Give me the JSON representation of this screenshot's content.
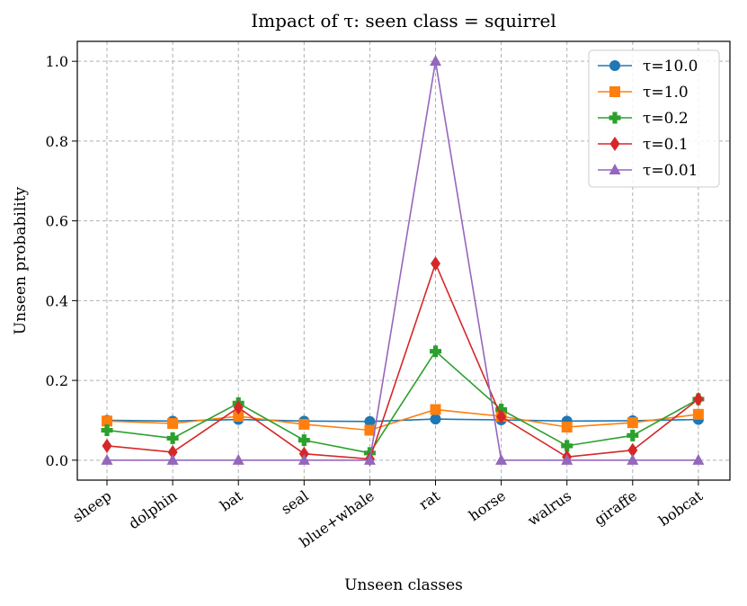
{
  "chart_data": {
    "type": "line",
    "title": "Impact of τ: seen class = squirrel",
    "xlabel": "Unseen classes",
    "ylabel": "Unseen probability",
    "ylim": [
      -0.05,
      1.05
    ],
    "yticks": [
      0.0,
      0.2,
      0.4,
      0.6,
      0.8,
      1.0
    ],
    "ytick_labels": [
      "0.0",
      "0.2",
      "0.4",
      "0.6",
      "0.8",
      "1.0"
    ],
    "grid": true,
    "legend_position": "top-right",
    "categories": [
      "sheep",
      "dolphin",
      "bat",
      "seal",
      "blue+whale",
      "rat",
      "horse",
      "walrus",
      "giraffe",
      "bobcat"
    ],
    "series": [
      {
        "name": "τ=10.0",
        "color": "#1f77b4",
        "marker": "circle",
        "values": [
          0.1,
          0.098,
          0.102,
          0.098,
          0.097,
          0.103,
          0.101,
          0.098,
          0.099,
          0.102
        ]
      },
      {
        "name": "τ=1.0",
        "color": "#ff7f0e",
        "marker": "square",
        "values": [
          0.098,
          0.092,
          0.11,
          0.09,
          0.075,
          0.127,
          0.11,
          0.083,
          0.094,
          0.115
        ]
      },
      {
        "name": "τ=0.2",
        "color": "#2ca02c",
        "marker": "plus",
        "values": [
          0.075,
          0.055,
          0.143,
          0.05,
          0.018,
          0.273,
          0.127,
          0.036,
          0.062,
          0.153
        ]
      },
      {
        "name": "τ=0.1",
        "color": "#d62728",
        "marker": "diamond",
        "values": [
          0.036,
          0.02,
          0.132,
          0.016,
          0.003,
          0.493,
          0.109,
          0.008,
          0.025,
          0.153
        ]
      },
      {
        "name": "τ=0.01",
        "color": "#9467bd",
        "marker": "triangle",
        "values": [
          0.0,
          0.0,
          0.0,
          0.0,
          0.0,
          1.0,
          0.0,
          0.0,
          0.0,
          0.0
        ]
      }
    ]
  }
}
